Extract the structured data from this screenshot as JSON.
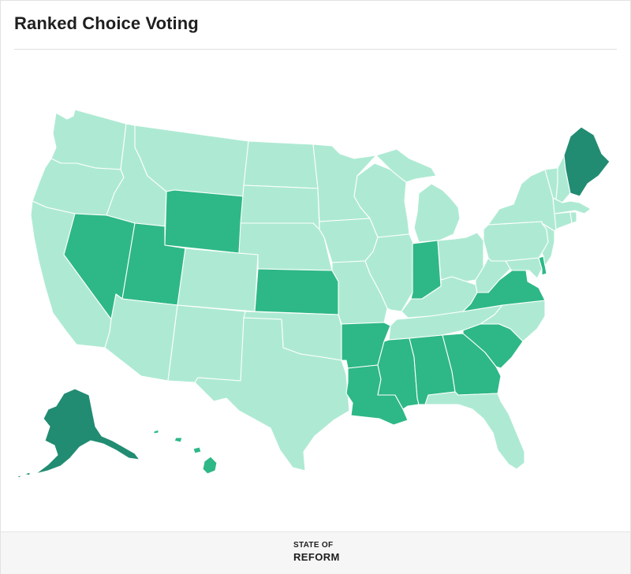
{
  "title": "Ranked Choice Voting",
  "footer": {
    "brand_top": "STATE OF",
    "brand_bottom": "REFORM"
  },
  "map": {
    "colors": {
      "light": "#aeead3",
      "medium": "#2eb887",
      "dark": "#218c72",
      "border": "#ffffff"
    },
    "states": [
      {
        "code": "WA",
        "level": "light"
      },
      {
        "code": "OR",
        "level": "light"
      },
      {
        "code": "CA",
        "level": "light"
      },
      {
        "code": "ID",
        "level": "light"
      },
      {
        "code": "NV",
        "level": "medium"
      },
      {
        "code": "MT",
        "level": "light"
      },
      {
        "code": "WY",
        "level": "medium"
      },
      {
        "code": "UT",
        "level": "medium"
      },
      {
        "code": "AZ",
        "level": "light"
      },
      {
        "code": "CO",
        "level": "light"
      },
      {
        "code": "NM",
        "level": "light"
      },
      {
        "code": "ND",
        "level": "light"
      },
      {
        "code": "SD",
        "level": "light"
      },
      {
        "code": "NE",
        "level": "light"
      },
      {
        "code": "KS",
        "level": "medium"
      },
      {
        "code": "OK",
        "level": "light"
      },
      {
        "code": "TX",
        "level": "light"
      },
      {
        "code": "MN",
        "level": "light"
      },
      {
        "code": "IA",
        "level": "light"
      },
      {
        "code": "MO",
        "level": "light"
      },
      {
        "code": "AR",
        "level": "medium"
      },
      {
        "code": "LA",
        "level": "medium"
      },
      {
        "code": "WI",
        "level": "light"
      },
      {
        "code": "IL",
        "level": "light"
      },
      {
        "code": "MI",
        "level": "light"
      },
      {
        "code": "IN",
        "level": "medium"
      },
      {
        "code": "OH",
        "level": "light"
      },
      {
        "code": "KY",
        "level": "light"
      },
      {
        "code": "TN",
        "level": "light"
      },
      {
        "code": "MS",
        "level": "medium"
      },
      {
        "code": "AL",
        "level": "medium"
      },
      {
        "code": "GA",
        "level": "medium"
      },
      {
        "code": "FL",
        "level": "light"
      },
      {
        "code": "SC",
        "level": "medium"
      },
      {
        "code": "NC",
        "level": "light"
      },
      {
        "code": "VA",
        "level": "medium"
      },
      {
        "code": "WV",
        "level": "light"
      },
      {
        "code": "MD",
        "level": "light"
      },
      {
        "code": "DE",
        "level": "medium"
      },
      {
        "code": "PA",
        "level": "light"
      },
      {
        "code": "NJ",
        "level": "light"
      },
      {
        "code": "NY",
        "level": "light"
      },
      {
        "code": "CT",
        "level": "light"
      },
      {
        "code": "RI",
        "level": "light"
      },
      {
        "code": "MA",
        "level": "light"
      },
      {
        "code": "VT",
        "level": "light"
      },
      {
        "code": "NH",
        "level": "light"
      },
      {
        "code": "ME",
        "level": "dark"
      },
      {
        "code": "AK",
        "level": "dark"
      },
      {
        "code": "HI",
        "level": "medium"
      }
    ]
  }
}
